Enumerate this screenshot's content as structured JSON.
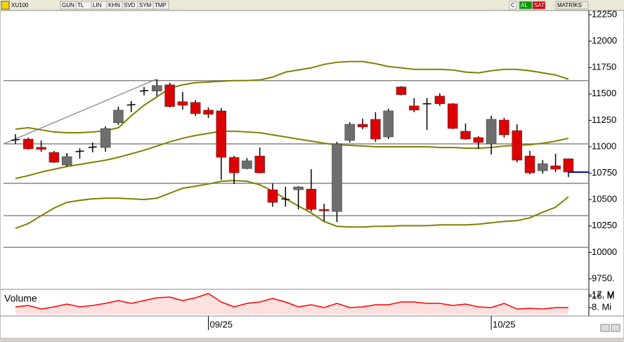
{
  "toolbar": {
    "symbol": "XU100",
    "buttons": [
      "GUN",
      "TL",
      "LIN",
      "KHN",
      "SVD",
      "SYM",
      "TMP"
    ],
    "right": [
      "C",
      "AL",
      "SAT",
      "MATRİKS"
    ]
  },
  "chart_data": [
    {
      "type": "candlestick",
      "categories": [
        null,
        null,
        null,
        null,
        null,
        null,
        null,
        null,
        null,
        null,
        null,
        null,
        null,
        null,
        null,
        "09/25",
        null,
        null,
        null,
        null,
        null,
        null,
        null,
        null,
        null,
        null,
        null,
        null,
        null,
        null,
        null,
        null,
        null,
        null,
        null,
        null,
        null,
        "10/25",
        null,
        null,
        null,
        null,
        null,
        null
      ],
      "open": [
        11060,
        11073,
        10995,
        10947,
        10827,
        10953,
        10993,
        10993,
        11227,
        11395,
        11527,
        11527,
        11587,
        11427,
        11420,
        11347,
        11340,
        10900,
        10793,
        10913,
        10593,
        10507,
        10593,
        10600,
        10407,
        10387,
        11060,
        11213,
        11260,
        11093,
        11567,
        11387,
        11407,
        11480,
        11407,
        11147,
        11087,
        11027,
        11253,
        11153,
        10913,
        10773,
        10820,
        10887
      ],
      "high": [
        11120,
        11087,
        11060,
        10960,
        10940,
        10987,
        11040,
        11193,
        11380,
        11433,
        11567,
        11640,
        11607,
        11520,
        11440,
        11373,
        11367,
        10913,
        10893,
        10993,
        10653,
        10620,
        10627,
        10787,
        10460,
        11047,
        11233,
        11267,
        11327,
        11360,
        11573,
        11460,
        11460,
        11507,
        11413,
        11220,
        11100,
        11293,
        11273,
        11213,
        10960,
        10873,
        10933,
        10887
      ],
      "low": [
        11027,
        10973,
        10953,
        10847,
        10813,
        10887,
        10947,
        10953,
        11207,
        11327,
        11487,
        11480,
        11373,
        11353,
        11293,
        11273,
        10687,
        10647,
        10787,
        10747,
        10433,
        10433,
        10407,
        10387,
        10293,
        10287,
        11040,
        11167,
        11047,
        11073,
        11487,
        11327,
        11160,
        11387,
        11167,
        11067,
        10980,
        10927,
        11087,
        10853,
        10740,
        10747,
        10760,
        10713
      ],
      "close": [
        11070,
        10980,
        10975,
        10853,
        10907,
        10960,
        11000,
        11173,
        11347,
        11400,
        11533,
        11580,
        11380,
        11393,
        11313,
        11307,
        10900,
        10753,
        10867,
        10753,
        10473,
        10500,
        10620,
        10407,
        10393,
        11027,
        11213,
        11187,
        11073,
        11340,
        11493,
        11347,
        11407,
        11407,
        11173,
        11073,
        11040,
        11260,
        11113,
        10873,
        10753,
        10840,
        10787,
        10760
      ],
      "up_color": "#6e6e6e",
      "down_color": "#dd0000",
      "last_price_color": "#00008b",
      "bands": [
        {
          "name": "upper",
          "color": "#808000",
          "values": [
            11167,
            11180,
            11160,
            11140,
            11133,
            11133,
            11140,
            11153,
            11180,
            11293,
            11393,
            11473,
            11553,
            11587,
            11607,
            11613,
            11620,
            11627,
            11627,
            11633,
            11660,
            11707,
            11727,
            11747,
            11780,
            11800,
            11807,
            11807,
            11787,
            11760,
            11747,
            11733,
            11733,
            11733,
            11727,
            11707,
            11700,
            11720,
            11733,
            11733,
            11720,
            11700,
            11680,
            11640
          ]
        },
        {
          "name": "middle",
          "color": "#808000",
          "values": [
            10700,
            10727,
            10760,
            10787,
            10813,
            10833,
            10853,
            10873,
            10900,
            10933,
            10967,
            11007,
            11047,
            11080,
            11107,
            11127,
            11147,
            11147,
            11140,
            11133,
            11113,
            11093,
            11073,
            11053,
            11033,
            11020,
            11013,
            11007,
            11000,
            11000,
            11000,
            11000,
            11000,
            10993,
            10993,
            10987,
            10987,
            10993,
            11007,
            11013,
            11020,
            11033,
            11053,
            11080
          ]
        },
        {
          "name": "lower",
          "color": "#808000",
          "values": [
            10227,
            10273,
            10347,
            10420,
            10473,
            10493,
            10507,
            10513,
            10513,
            10507,
            10500,
            10513,
            10560,
            10607,
            10627,
            10647,
            10673,
            10680,
            10673,
            10640,
            10580,
            10507,
            10440,
            10373,
            10293,
            10247,
            10240,
            10240,
            10247,
            10247,
            10253,
            10253,
            10253,
            10260,
            10260,
            10260,
            10267,
            10280,
            10293,
            10300,
            10327,
            10380,
            10427,
            10527
          ]
        }
      ],
      "hlines": [
        11627,
        11027,
        10653,
        10347,
        10047
      ],
      "ylim": [
        9650,
        12290
      ],
      "yticks": [
        12250,
        12000,
        11750,
        11500,
        11250,
        11000,
        10750,
        10500,
        10250,
        10000,
        {
          "value": 9750,
          "label": "9750."
        }
      ]
    },
    {
      "type": "area",
      "title": "Volume",
      "color": "#ff0000",
      "values": [
        8.5,
        9.5,
        7,
        8.5,
        10.5,
        8.5,
        9.5,
        11,
        13,
        11,
        13,
        15,
        15.5,
        13,
        15,
        18,
        12,
        8.5,
        11,
        12,
        14.5,
        12,
        8.5,
        10,
        8,
        11,
        8,
        8.5,
        10,
        10,
        12,
        12,
        11,
        11,
        9.5,
        10.5,
        8.5,
        8,
        11,
        7,
        7.5,
        7,
        8,
        8
      ],
      "ylim": [
        3,
        21
      ],
      "yticks": [
        {
          "value": 17,
          "label": "17. M"
        },
        {
          "value": 16,
          "label": "16. M"
        },
        {
          "value": 8,
          "label": "8. Mi"
        }
      ]
    }
  ]
}
